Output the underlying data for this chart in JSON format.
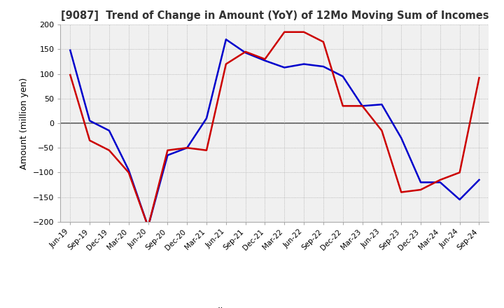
{
  "title": "[9087]  Trend of Change in Amount (YoY) of 12Mo Moving Sum of Incomes",
  "ylabel": "Amount (million yen)",
  "ylim": [
    -200,
    200
  ],
  "yticks": [
    -200,
    -150,
    -100,
    -50,
    0,
    50,
    100,
    150,
    200
  ],
  "dates": [
    "Jun-19",
    "Sep-19",
    "Dec-19",
    "Mar-20",
    "Jun-20",
    "Sep-20",
    "Dec-20",
    "Mar-21",
    "Jun-21",
    "Sep-21",
    "Dec-21",
    "Mar-22",
    "Jun-22",
    "Sep-22",
    "Dec-22",
    "Mar-23",
    "Jun-23",
    "Sep-23",
    "Dec-23",
    "Mar-24",
    "Jun-24",
    "Sep-24"
  ],
  "ordinary_income": [
    148,
    5,
    -15,
    -95,
    -210,
    -65,
    -50,
    10,
    170,
    143,
    127,
    113,
    120,
    115,
    95,
    35,
    38,
    -30,
    -120,
    -120,
    -155,
    -115
  ],
  "net_income": [
    98,
    -35,
    -55,
    -100,
    -210,
    -55,
    -50,
    -55,
    120,
    145,
    130,
    185,
    185,
    165,
    35,
    35,
    -15,
    -140,
    -135,
    -115,
    -100,
    92
  ],
  "ordinary_color": "#0000cc",
  "net_color": "#cc0000",
  "line_width": 1.8,
  "background_color": "#ffffff",
  "plot_bg_color": "#f0f0f0",
  "grid_color": "#aaaaaa",
  "zero_line_color": "#555555"
}
